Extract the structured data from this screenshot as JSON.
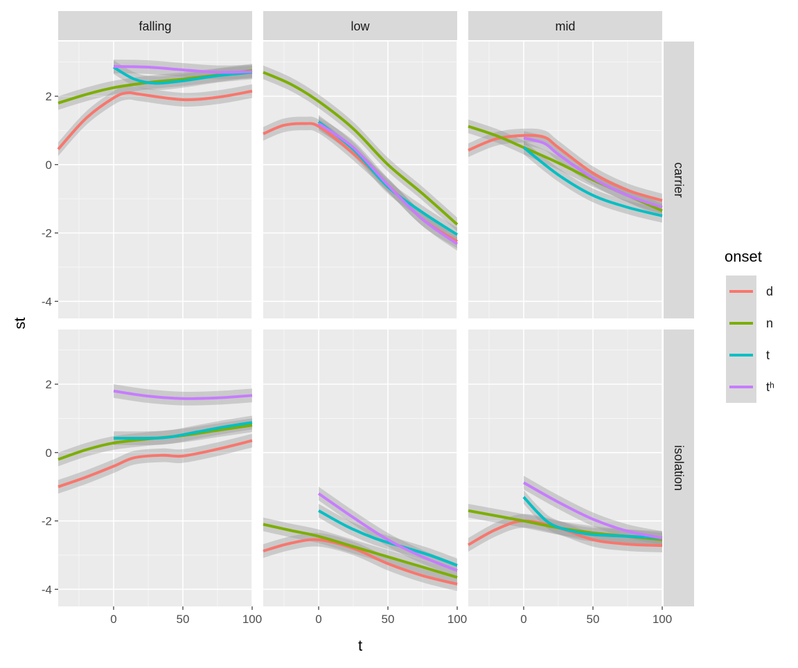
{
  "chart_data": {
    "type": "line",
    "title": "",
    "xlabel": "t",
    "ylabel": "st",
    "xlim": [
      -40,
      100
    ],
    "ylim": [
      -4.5,
      3.6
    ],
    "x_ticks": [
      0,
      50,
      100
    ],
    "y_ticks": [
      -4,
      -2,
      0,
      2
    ],
    "grid": true,
    "legend": {
      "title": "onset",
      "position": "right",
      "entries": [
        {
          "label": "d",
          "color": "#F8766D"
        },
        {
          "label": "n",
          "color": "#7CAE00"
        },
        {
          "label": "t",
          "color": "#00BFC4"
        },
        {
          "label": "tʰ",
          "color": "#C77CFF"
        }
      ]
    },
    "col_facets": [
      "falling",
      "low",
      "mid"
    ],
    "row_facets": [
      "carrier",
      "isolation"
    ],
    "panels": [
      {
        "col": "falling",
        "row": "carrier",
        "series": [
          {
            "name": "d",
            "x": [
              -40,
              -20,
              0,
              10,
              20,
              50,
              75,
              100
            ],
            "y": [
              0.45,
              1.35,
              1.95,
              2.1,
              2.05,
              1.9,
              1.97,
              2.15
            ]
          },
          {
            "name": "n",
            "x": [
              -40,
              -20,
              0,
              25,
              50,
              75,
              100
            ],
            "y": [
              1.8,
              2.05,
              2.25,
              2.4,
              2.5,
              2.62,
              2.75
            ]
          },
          {
            "name": "t",
            "x": [
              0,
              15,
              30,
              50,
              75,
              100
            ],
            "y": [
              2.85,
              2.5,
              2.38,
              2.45,
              2.6,
              2.7
            ]
          },
          {
            "name": "tʰ",
            "x": [
              0,
              25,
              50,
              75,
              100
            ],
            "y": [
              2.87,
              2.85,
              2.77,
              2.7,
              2.72
            ]
          }
        ]
      },
      {
        "col": "low",
        "row": "carrier",
        "series": [
          {
            "name": "d",
            "x": [
              -40,
              -25,
              -10,
              0,
              20,
              50,
              75,
              100
            ],
            "y": [
              0.9,
              1.15,
              1.2,
              1.12,
              0.5,
              -0.6,
              -1.6,
              -2.25
            ]
          },
          {
            "name": "n",
            "x": [
              -40,
              -20,
              0,
              25,
              50,
              75,
              100
            ],
            "y": [
              2.7,
              2.35,
              1.85,
              1.05,
              0.0,
              -0.85,
              -1.75
            ]
          },
          {
            "name": "t",
            "x": [
              0,
              25,
              50,
              75,
              100
            ],
            "y": [
              1.25,
              0.45,
              -0.65,
              -1.4,
              -2.05
            ]
          },
          {
            "name": "tʰ",
            "x": [
              0,
              25,
              50,
              75,
              100
            ],
            "y": [
              1.2,
              0.5,
              -0.6,
              -1.6,
              -2.32
            ]
          }
        ]
      },
      {
        "col": "mid",
        "row": "carrier",
        "series": [
          {
            "name": "d",
            "x": [
              -40,
              -20,
              0,
              15,
              25,
              50,
              75,
              100
            ],
            "y": [
              0.42,
              0.75,
              0.85,
              0.8,
              0.5,
              -0.25,
              -0.75,
              -1.05
            ]
          },
          {
            "name": "n",
            "x": [
              -40,
              -20,
              0,
              25,
              50,
              75,
              100
            ],
            "y": [
              1.12,
              0.85,
              0.5,
              0.05,
              -0.45,
              -0.9,
              -1.35
            ]
          },
          {
            "name": "t",
            "x": [
              0,
              25,
              50,
              75,
              100
            ],
            "y": [
              0.5,
              -0.3,
              -0.9,
              -1.25,
              -1.5
            ]
          },
          {
            "name": "tʰ",
            "x": [
              0,
              15,
              25,
              50,
              75,
              100
            ],
            "y": [
              0.78,
              0.62,
              0.3,
              -0.4,
              -0.9,
              -1.25
            ]
          }
        ]
      },
      {
        "col": "falling",
        "row": "isolation",
        "series": [
          {
            "name": "d",
            "x": [
              -40,
              -20,
              0,
              15,
              35,
              50,
              75,
              100
            ],
            "y": [
              -1.0,
              -0.72,
              -0.4,
              -0.15,
              -0.08,
              -0.1,
              0.1,
              0.35
            ]
          },
          {
            "name": "n",
            "x": [
              -40,
              -20,
              0,
              25,
              50,
              75,
              100
            ],
            "y": [
              -0.2,
              0.08,
              0.28,
              0.4,
              0.5,
              0.65,
              0.8
            ]
          },
          {
            "name": "t",
            "x": [
              0,
              25,
              40,
              60,
              80,
              100
            ],
            "y": [
              0.42,
              0.42,
              0.45,
              0.6,
              0.75,
              0.88
            ]
          },
          {
            "name": "tʰ",
            "x": [
              0,
              25,
              50,
              75,
              100
            ],
            "y": [
              1.8,
              1.65,
              1.58,
              1.6,
              1.67
            ]
          }
        ]
      },
      {
        "col": "low",
        "row": "isolation",
        "series": [
          {
            "name": "d",
            "x": [
              -40,
              -20,
              0,
              25,
              50,
              75,
              100
            ],
            "y": [
              -2.88,
              -2.65,
              -2.55,
              -2.8,
              -3.25,
              -3.6,
              -3.85
            ]
          },
          {
            "name": "n",
            "x": [
              -40,
              -20,
              0,
              25,
              50,
              75,
              100
            ],
            "y": [
              -2.1,
              -2.28,
              -2.45,
              -2.75,
              -3.05,
              -3.35,
              -3.65
            ]
          },
          {
            "name": "t",
            "x": [
              0,
              20,
              40,
              60,
              80,
              100
            ],
            "y": [
              -1.7,
              -2.15,
              -2.5,
              -2.75,
              -3.0,
              -3.3
            ]
          },
          {
            "name": "tʰ",
            "x": [
              0,
              25,
              50,
              75,
              100
            ],
            "y": [
              -1.2,
              -1.9,
              -2.55,
              -3.05,
              -3.45
            ]
          }
        ]
      },
      {
        "col": "mid",
        "row": "isolation",
        "series": [
          {
            "name": "d",
            "x": [
              -40,
              -20,
              0,
              25,
              50,
              75,
              100
            ],
            "y": [
              -2.7,
              -2.25,
              -2.0,
              -2.2,
              -2.55,
              -2.68,
              -2.72
            ]
          },
          {
            "name": "n",
            "x": [
              -40,
              -20,
              0,
              25,
              50,
              75,
              100
            ],
            "y": [
              -1.7,
              -1.85,
              -2.0,
              -2.2,
              -2.35,
              -2.45,
              -2.55
            ]
          },
          {
            "name": "t",
            "x": [
              0,
              10,
              20,
              35,
              50,
              75,
              100
            ],
            "y": [
              -1.3,
              -1.75,
              -2.1,
              -2.3,
              -2.4,
              -2.45,
              -2.5
            ]
          },
          {
            "name": "tʰ",
            "x": [
              0,
              25,
              50,
              75,
              100
            ],
            "y": [
              -0.88,
              -1.45,
              -1.95,
              -2.3,
              -2.5
            ]
          }
        ]
      }
    ]
  }
}
